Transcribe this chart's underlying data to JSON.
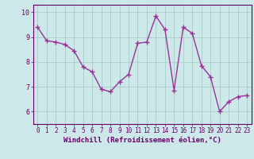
{
  "x": [
    0,
    1,
    2,
    3,
    4,
    5,
    6,
    7,
    8,
    9,
    10,
    11,
    12,
    13,
    14,
    15,
    16,
    17,
    18,
    19,
    20,
    21,
    22,
    23
  ],
  "y": [
    9.4,
    8.85,
    8.8,
    8.7,
    8.45,
    7.8,
    7.6,
    6.9,
    6.8,
    7.2,
    7.5,
    8.75,
    8.8,
    9.85,
    9.3,
    6.85,
    9.4,
    9.15,
    7.85,
    7.4,
    6.0,
    6.4,
    6.6,
    6.65
  ],
  "line_color": "#993399",
  "marker": "+",
  "marker_size": 4,
  "linewidth": 1.0,
  "xlabel": "Windchill (Refroidissement éolien,°C)",
  "xlabel_fontsize": 6.5,
  "bg_color": "#cce8e8",
  "grid_color": "#aacccc",
  "axis_color": "#660066",
  "tick_color": "#660066",
  "ylim": [
    5.5,
    10.3
  ],
  "xlim": [
    -0.5,
    23.5
  ],
  "yticks": [
    6,
    7,
    8,
    9,
    10
  ],
  "xticks": [
    0,
    1,
    2,
    3,
    4,
    5,
    6,
    7,
    8,
    9,
    10,
    11,
    12,
    13,
    14,
    15,
    16,
    17,
    18,
    19,
    20,
    21,
    22,
    23
  ],
  "tick_fontsize": 5.5
}
